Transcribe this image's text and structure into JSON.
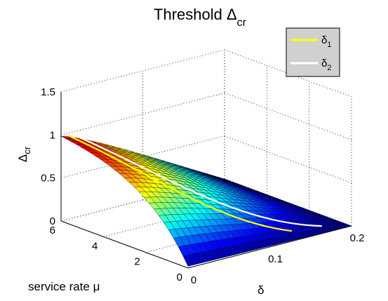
{
  "chart_data": {
    "type": "surface",
    "title": "Threshold Δ",
    "title_subscript": "cr",
    "xlabel": "δ",
    "ylabel": "service rate μ",
    "zlabel": "Δ",
    "zlabel_subscript": "cr",
    "xlim": [
      0,
      0.2
    ],
    "ylim": [
      0,
      6
    ],
    "zlim": [
      0,
      1.5
    ],
    "x_ticks": [
      "0",
      "0.1",
      "0.2"
    ],
    "y_ticks": [
      "0",
      "2",
      "4",
      "6"
    ],
    "z_ticks": [
      "0",
      "0.5",
      "1",
      "1.5"
    ],
    "grid": true,
    "legend_position": "top-right",
    "colormap": "jet",
    "surface_corners": [
      {
        "delta": 0,
        "mu": 0,
        "value": 0.1
      },
      {
        "delta": 0,
        "mu": 6,
        "value": 1.03
      },
      {
        "delta": 0.2,
        "mu": 6,
        "value": 0.05
      },
      {
        "delta": 0.2,
        "mu": 0,
        "value": 0.0
      }
    ],
    "series": [
      {
        "name": "δ",
        "subscript": "1",
        "color": "#ffff00"
      },
      {
        "name": "δ",
        "subscript": "2",
        "color": "#ffffff"
      }
    ]
  }
}
